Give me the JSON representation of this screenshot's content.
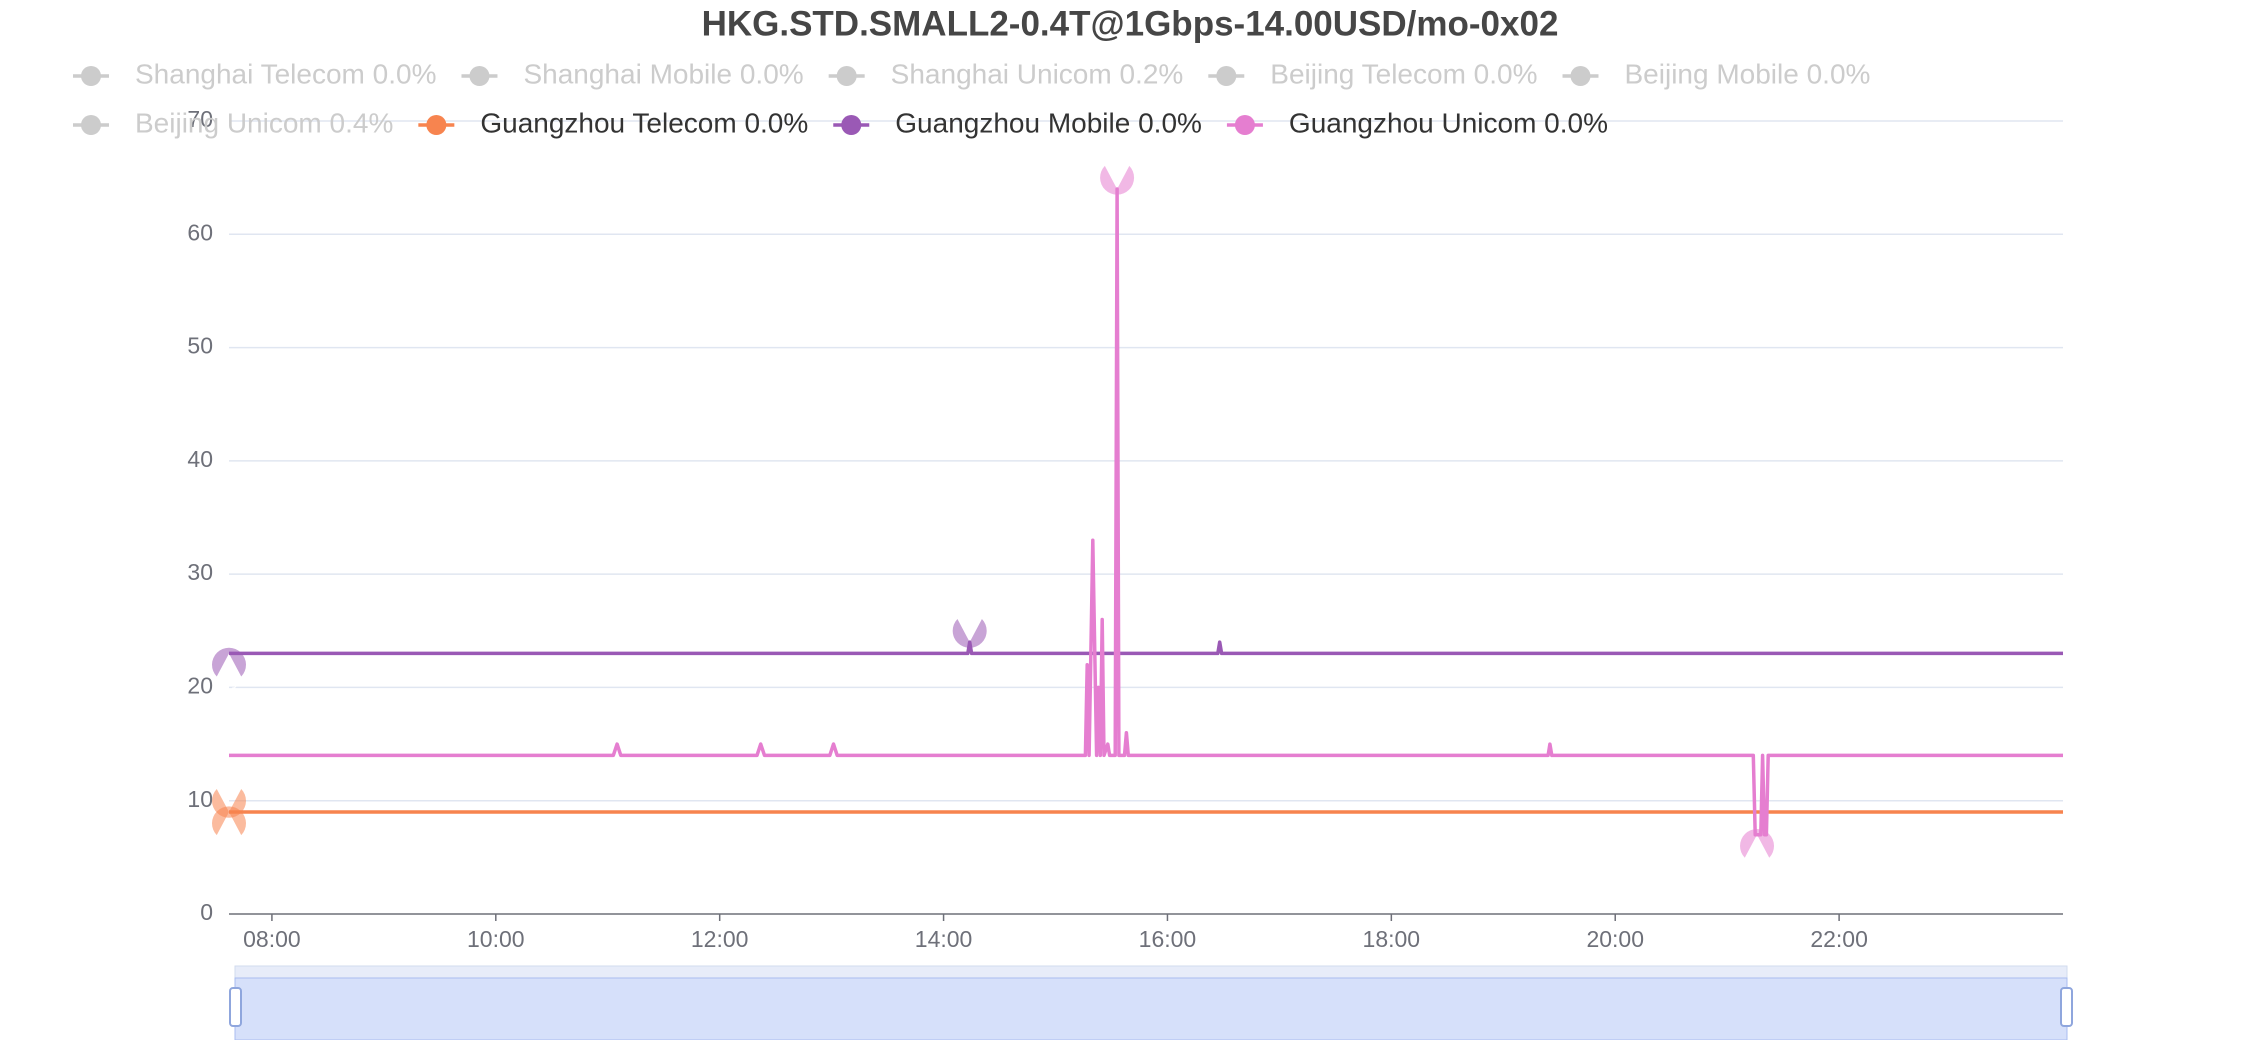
{
  "chart_data": {
    "type": "line",
    "title": "HKG.STD.SMALL2-0.4T@1Gbps-14.00USD/mo-0x02",
    "xlim": [
      "07:37",
      "24:00"
    ],
    "xticks": [
      "08:00",
      "10:00",
      "12:00",
      "14:00",
      "16:00",
      "18:00",
      "20:00",
      "22:00"
    ],
    "ylim": [
      0,
      70
    ],
    "yticks": [
      0,
      10,
      20,
      30,
      40,
      50,
      60,
      70
    ],
    "grid": true,
    "series": [
      {
        "name": "Shanghai Telecom 0.0%",
        "visible": false
      },
      {
        "name": "Shanghai Mobile 0.0%",
        "visible": false
      },
      {
        "name": "Shanghai Unicom 0.2%",
        "visible": false
      },
      {
        "name": "Beijing Telecom 0.0%",
        "visible": false
      },
      {
        "name": "Beijing Mobile 0.0%",
        "visible": false
      },
      {
        "name": "Beijing Unicom 0.4%",
        "visible": false
      },
      {
        "name": "Guangzhou Telecom 0.0%",
        "visible": true,
        "color": "#f7844f",
        "x": [
          "07:37",
          "24:00"
        ],
        "values": [
          9,
          9
        ],
        "mark_points": [
          {
            "type": "max",
            "x": "07:37",
            "value": 9
          },
          {
            "type": "min",
            "x": "07:37",
            "value": 9
          }
        ]
      },
      {
        "name": "Guangzhou Mobile 0.0%",
        "visible": true,
        "color": "#9a59b5",
        "x": [
          "07:37",
          "14:13",
          "14:14",
          "14:15",
          "16:27",
          "16:28",
          "16:29",
          "24:00"
        ],
        "values": [
          23,
          23,
          24,
          23,
          23,
          24,
          23,
          23
        ],
        "mark_points": [
          {
            "type": "max",
            "x": "14:14",
            "value": 24
          },
          {
            "type": "min",
            "x": "07:37",
            "value": 23
          }
        ]
      },
      {
        "name": "Guangzhou Unicom 0.0%",
        "visible": true,
        "color": "#e57ed0",
        "x": [
          "07:37",
          "11:03",
          "11:05",
          "11:07",
          "12:20",
          "12:22",
          "12:24",
          "12:59",
          "13:01",
          "13:03",
          "15:16",
          "15:17",
          "15:18",
          "15:20",
          "15:22",
          "15:23",
          "15:24",
          "15:25",
          "15:26",
          "15:28",
          "15:29",
          "15:32",
          "15:33",
          "15:34",
          "15:37",
          "15:38",
          "15:39",
          "19:24",
          "19:25",
          "19:26",
          "21:14",
          "21:15",
          "21:18",
          "21:19",
          "21:20",
          "21:21",
          "21:22",
          "24:00"
        ],
        "values": [
          14,
          14,
          15,
          14,
          14,
          15,
          14,
          14,
          15,
          14,
          14,
          22,
          14,
          33,
          14,
          20,
          14,
          26,
          14,
          15,
          14,
          14,
          64,
          14,
          14,
          16,
          14,
          14,
          15,
          14,
          14,
          7,
          7,
          14,
          7,
          7,
          14,
          14
        ],
        "mark_points": [
          {
            "type": "max",
            "x": "15:33",
            "value": 64
          },
          {
            "type": "min",
            "x": "21:16",
            "value": 7
          }
        ]
      }
    ]
  }
}
